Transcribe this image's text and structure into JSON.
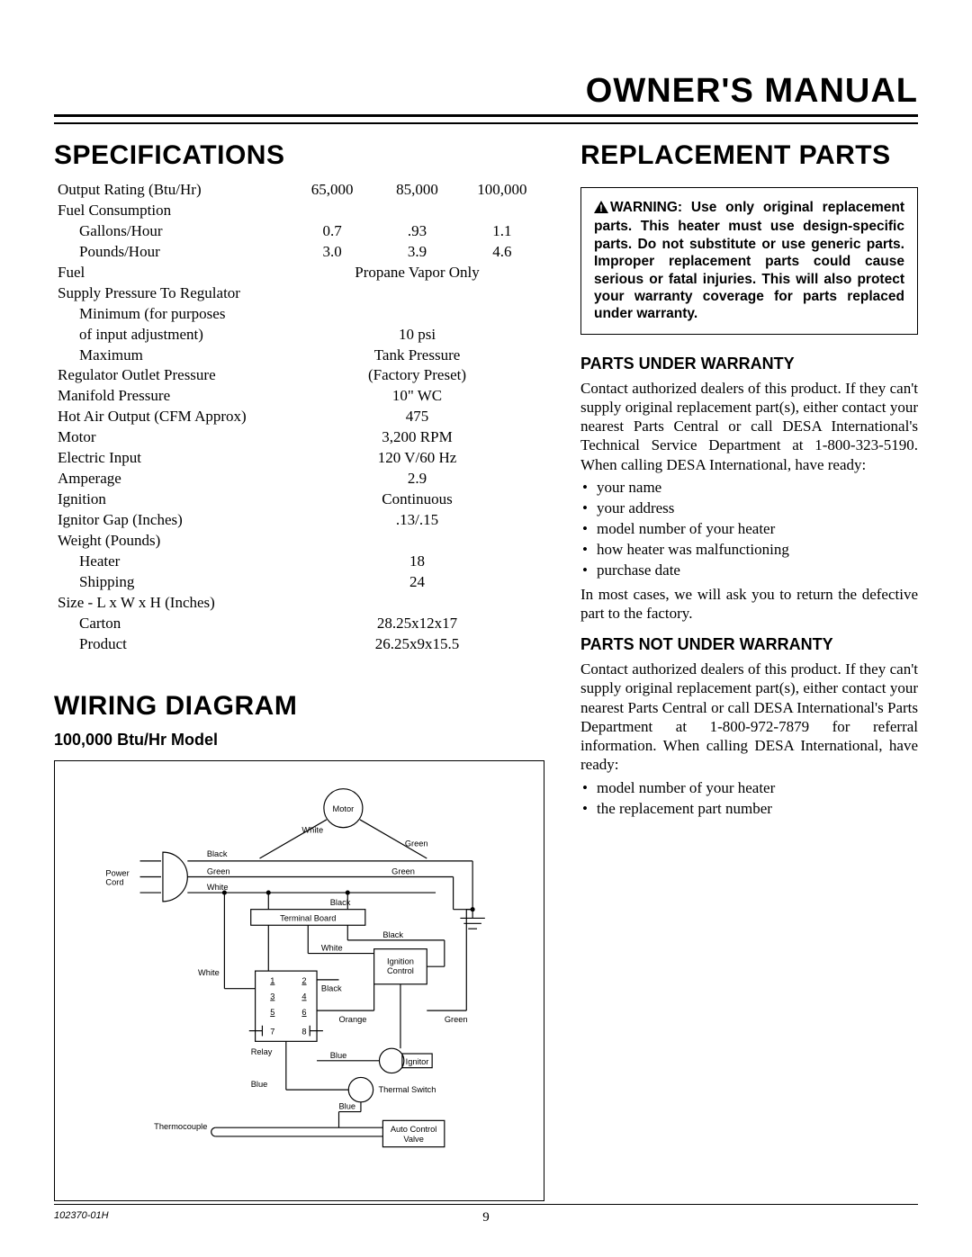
{
  "page": {
    "title": "OWNER'S MANUAL",
    "docnum": "102370-01H",
    "pagenum": "9"
  },
  "specs": {
    "heading": "SPECIFICATIONS",
    "rows": [
      {
        "label": "Output Rating (Btu/Hr)",
        "c1": "65,000",
        "c2": "85,000",
        "c3": "100,000"
      },
      {
        "label": "Fuel Consumption"
      },
      {
        "label": "Gallons/Hour",
        "indent": true,
        "c1": "0.7",
        "c2": ".93",
        "c3": "1.1"
      },
      {
        "label": "Pounds/Hour",
        "indent": true,
        "c1": "3.0",
        "c2": "3.9",
        "c3": "4.6"
      },
      {
        "label": "Fuel",
        "center": "Propane Vapor Only"
      },
      {
        "label": "Supply Pressure To Regulator"
      },
      {
        "label": "Minimum (for purposes",
        "indent": true
      },
      {
        "label": "of input adjustment)",
        "indent": true,
        "center": "10 psi"
      },
      {
        "label": "Maximum",
        "indent": true,
        "center": "Tank Pressure"
      },
      {
        "label": "Regulator Outlet Pressure",
        "center": "(Factory Preset)"
      },
      {
        "label": "Manifold Pressure",
        "center": "10\" WC"
      },
      {
        "label": "Hot Air Output (CFM Approx)",
        "center": "475"
      },
      {
        "label": "Motor",
        "center": "3,200 RPM"
      },
      {
        "label": "Electric Input",
        "center": "120 V/60 Hz"
      },
      {
        "label": "Amperage",
        "center": "2.9"
      },
      {
        "label": "Ignition",
        "center": "Continuous"
      },
      {
        "label": "Ignitor Gap (Inches)",
        "center": ".13/.15"
      },
      {
        "label": "Weight (Pounds)"
      },
      {
        "label": "Heater",
        "indent": true,
        "center": "18"
      },
      {
        "label": "Shipping",
        "indent": true,
        "center": "24"
      },
      {
        "label": "Size - L x W x H (Inches)"
      },
      {
        "label": "Carton",
        "indent": true,
        "center": "28.25x12x17"
      },
      {
        "label": "Product",
        "indent": true,
        "center": "26.25x9x15.5"
      }
    ]
  },
  "wiring": {
    "heading": "WIRING DIAGRAM",
    "sub": "100,000 Btu/Hr Model",
    "labels": {
      "motor": "Motor",
      "white": "White",
      "black": "Black",
      "green": "Green",
      "powercord": "Power\nCord",
      "terminalboard": "Terminal Board",
      "ignitioncontrol": "Ignition\nControl",
      "relay": "Relay",
      "orange": "Orange",
      "blue": "Blue",
      "ignitor": "Ignitor",
      "thermalswitch": "Thermal Switch",
      "thermocouple": "Thermocouple",
      "autocontrolvalve": "Auto Control\nValve"
    },
    "relay_nums": [
      "1",
      "2",
      "3",
      "4",
      "5",
      "6",
      "7",
      "8"
    ]
  },
  "parts": {
    "heading": "REPLACEMENT PARTS",
    "warning_prefix": "WARNING: Use only original replacement parts. This heater must use design-specific parts. Do not substitute or use generic parts. Improper replacement parts could cause serious or fatal injuries. This will also protect your warranty coverage for parts replaced under warranty.",
    "sub1": "PARTS UNDER WARRANTY",
    "p1": "Contact authorized dealers of this product. If they can't supply original replacement part(s), either contact your nearest Parts Central or call DESA International's Technical Service Department at 1-800-323-5190. When calling DESA International, have ready:",
    "list1": [
      "your name",
      "your address",
      "model number of your heater",
      "how heater was malfunctioning",
      "purchase date"
    ],
    "p1b": "In most cases, we will ask you to return the defective part to the factory.",
    "sub2": "PARTS NOT UNDER WARRANTY",
    "p2": "Contact authorized dealers of this product. If they can't supply original replacement part(s), either contact your nearest Parts Central or call DESA International's Parts Department at 1-800-972-7879 for referral information. When calling DESA International, have ready:",
    "list2": [
      "model number of your heater",
      "the replacement part number"
    ]
  }
}
